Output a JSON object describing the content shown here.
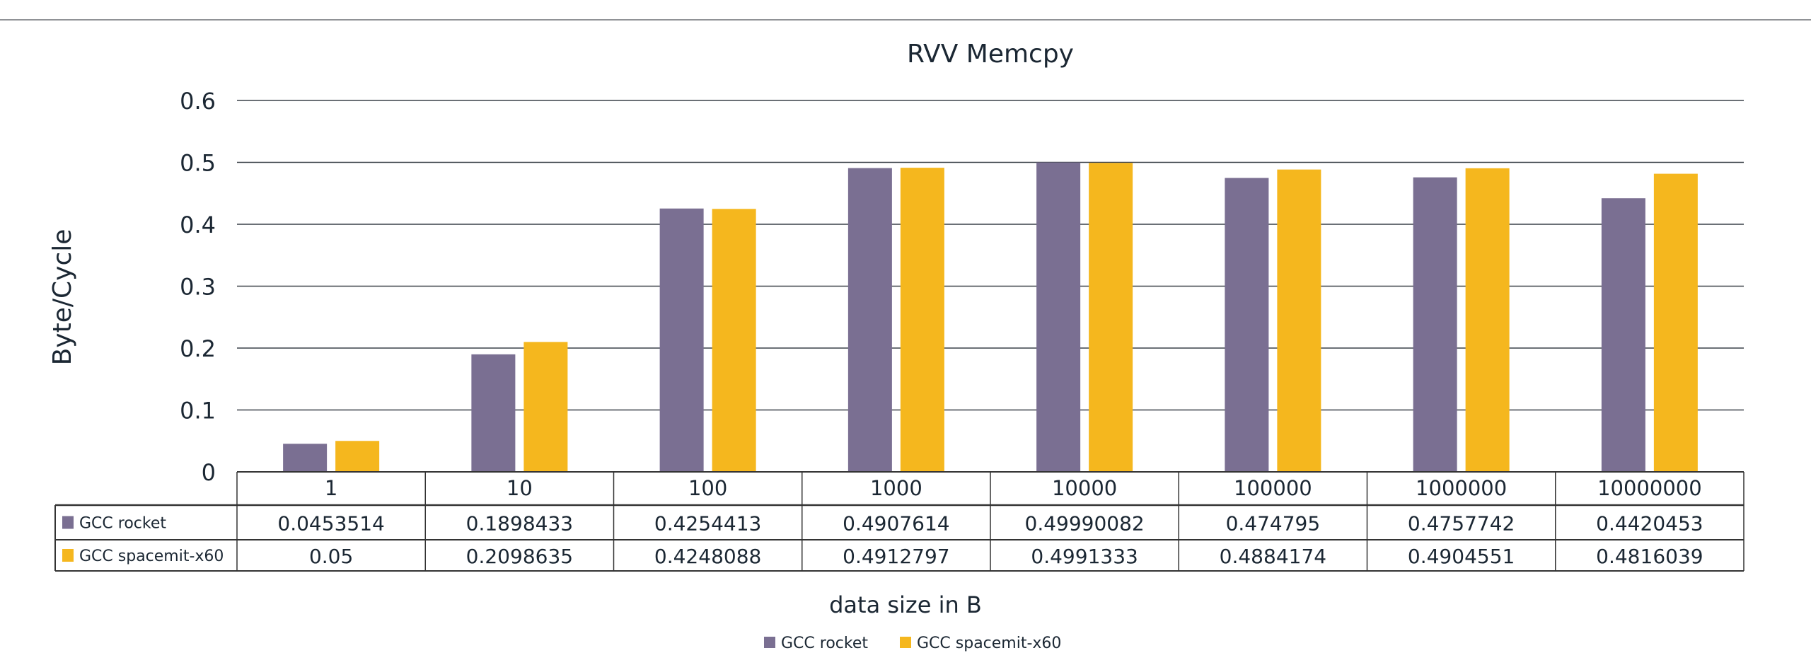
{
  "chart_data": {
    "type": "bar",
    "title": "RVV Memcpy",
    "xlabel": "data size in B",
    "ylabel": "Byte/Cycle",
    "ylim": [
      0,
      0.6
    ],
    "yticks": [
      "0",
      "0.1",
      "0.2",
      "0.3",
      "0.4",
      "0.5",
      "0.6"
    ],
    "grid": true,
    "legend_position": "bottom",
    "categories": [
      "1",
      "10",
      "100",
      "1000",
      "10000",
      "100000",
      "1000000",
      "10000000"
    ],
    "series": [
      {
        "name": "GCC rocket",
        "color": "#7a6f92",
        "values": [
          0.0453514,
          0.1898433,
          0.4254413,
          0.4907614,
          0.49990082,
          0.474795,
          0.4757742,
          0.4420453
        ],
        "labels": [
          "0.0453514",
          "0.1898433",
          "0.4254413",
          "0.4907614",
          "0.49990082",
          "0.474795",
          "0.4757742",
          "0.4420453"
        ]
      },
      {
        "name": "GCC spacemit-x60",
        "color": "#f5b71e",
        "values": [
          0.05,
          0.2098635,
          0.4248088,
          0.4912797,
          0.4991333,
          0.4884174,
          0.4904551,
          0.4816039
        ],
        "labels": [
          "0.05",
          "0.2098635",
          "0.4248088",
          "0.4912797",
          "0.4991333",
          "0.4884174",
          "0.4904551",
          "0.4816039"
        ]
      }
    ]
  }
}
